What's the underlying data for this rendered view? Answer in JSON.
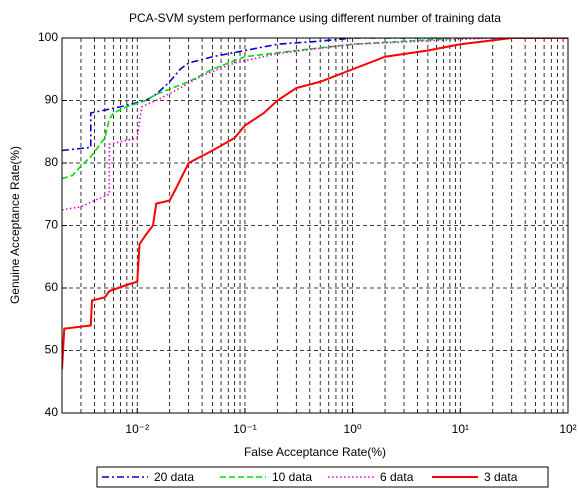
{
  "chart_data": {
    "type": "line",
    "title": "PCA-SVM system performance using different number of training data",
    "x_label": "False Acceptance Rate(%)",
    "y_label": "Genuine Acceptance Rate(%)",
    "x_log": true,
    "grid": true,
    "minor_grid": true,
    "legend_position": "bottom",
    "xlim": [
      0.002,
      100
    ],
    "xticks": [
      {
        "value": 0.01,
        "label": "10⁻²"
      },
      {
        "value": 0.1,
        "label": "10⁻¹"
      },
      {
        "value": 1,
        "label": "10⁰"
      },
      {
        "value": 10,
        "label": "10¹"
      },
      {
        "value": 100,
        "label": "10²"
      }
    ],
    "ylim": [
      40,
      100
    ],
    "yticks": [
      40,
      50,
      60,
      70,
      80,
      90,
      100
    ],
    "series": [
      {
        "name": "20 data",
        "color": "#0000cc",
        "linestyle": "dashdot",
        "x": [
          0.002,
          0.0037,
          0.0037,
          0.007,
          0.012,
          0.015,
          0.02,
          0.025,
          0.03,
          0.05,
          0.1,
          0.2,
          0.5,
          1,
          100
        ],
        "values": [
          82,
          82.5,
          88,
          89,
          90,
          91,
          93,
          95,
          96,
          97,
          98,
          99,
          99.5,
          100,
          100
        ]
      },
      {
        "name": "10 data",
        "color": "#00dd00",
        "linestyle": "dashed",
        "x": [
          0.002,
          0.0025,
          0.003,
          0.0037,
          0.005,
          0.0055,
          0.006,
          0.008,
          0.012,
          0.015,
          0.03,
          0.05,
          0.1,
          0.3,
          1,
          10,
          100
        ],
        "values": [
          77.5,
          78,
          79.5,
          81,
          84,
          87,
          88,
          89,
          90,
          91,
          93,
          95,
          97,
          98,
          99,
          100,
          100
        ]
      },
      {
        "name": "6 data",
        "color": "#ee00ee",
        "linestyle": "dotted",
        "x": [
          0.002,
          0.003,
          0.004,
          0.0055,
          0.0055,
          0.01,
          0.011,
          0.015,
          0.025,
          0.04,
          0.08,
          0.2,
          1,
          20,
          100
        ],
        "values": [
          72.5,
          73,
          74,
          75,
          83,
          84,
          89,
          90,
          92,
          94,
          96,
          97.5,
          99,
          100,
          100
        ]
      },
      {
        "name": "3 data",
        "color": "#ff0000",
        "linestyle": "solid",
        "x": [
          0.002,
          0.0021,
          0.0037,
          0.0038,
          0.005,
          0.0055,
          0.008,
          0.01,
          0.0105,
          0.012,
          0.014,
          0.015,
          0.02,
          0.023,
          0.03,
          0.05,
          0.08,
          0.1,
          0.15,
          0.2,
          0.3,
          0.5,
          1,
          2,
          5,
          10,
          30,
          100
        ],
        "values": [
          47,
          53.5,
          54,
          58,
          58.5,
          59.5,
          60.5,
          61,
          67,
          68.5,
          70,
          73.5,
          74,
          76,
          80,
          82,
          84,
          86,
          88,
          90,
          92,
          93,
          95,
          97,
          98,
          99,
          100,
          100
        ]
      }
    ]
  }
}
